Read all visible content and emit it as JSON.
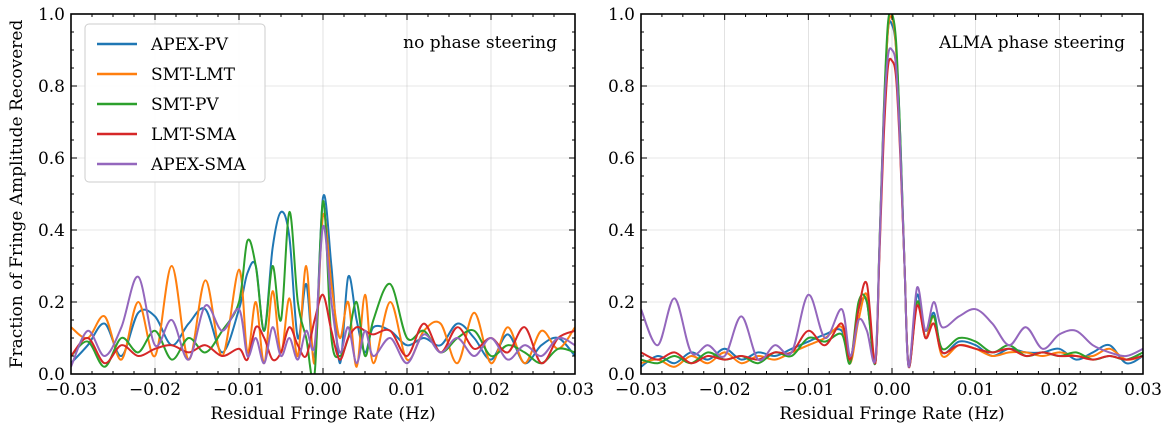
{
  "chart_data": [
    {
      "type": "line",
      "annotation": "no phase steering",
      "xlabel": "Residual Fringe Rate (Hz)",
      "ylabel": "Fraction of Fringe Amplitude Recovered",
      "xlim": [
        -0.03,
        0.03
      ],
      "ylim": [
        0.0,
        1.0
      ],
      "xticks": [
        -0.03,
        -0.02,
        -0.01,
        0.0,
        0.01,
        0.02,
        0.03
      ],
      "xticklabels": [
        "−0.03",
        "−0.02",
        "−0.01",
        "0.00",
        "0.01",
        "0.02",
        "0.03"
      ],
      "yticks": [
        0.0,
        0.2,
        0.4,
        0.6,
        0.8,
        1.0
      ],
      "yticklabels": [
        "0.0",
        "0.2",
        "0.4",
        "0.6",
        "0.8",
        "1.0"
      ],
      "grid": true,
      "legend": "top-left",
      "series": [
        {
          "name": "APEX-PV",
          "color": "#1f77b4",
          "x": [
            -0.03,
            -0.028,
            -0.026,
            -0.024,
            -0.022,
            -0.02,
            -0.018,
            -0.016,
            -0.014,
            -0.012,
            -0.01,
            -0.009,
            -0.008,
            -0.007,
            -0.006,
            -0.005,
            -0.004,
            -0.003,
            -0.002,
            -0.001,
            0.0,
            0.001,
            0.002,
            0.003,
            0.004,
            0.005,
            0.006,
            0.008,
            0.01,
            0.012,
            0.014,
            0.016,
            0.018,
            0.02,
            0.022,
            0.024,
            0.026,
            0.028,
            0.03
          ],
          "values": [
            0.03,
            0.08,
            0.14,
            0.05,
            0.17,
            0.16,
            0.08,
            0.14,
            0.18,
            0.06,
            0.18,
            0.28,
            0.3,
            0.12,
            0.35,
            0.45,
            0.38,
            0.1,
            0.25,
            0.05,
            0.49,
            0.3,
            0.03,
            0.27,
            0.15,
            0.06,
            0.13,
            0.12,
            0.08,
            0.1,
            0.08,
            0.14,
            0.1,
            0.04,
            0.11,
            0.03,
            0.08,
            0.1,
            0.05
          ]
        },
        {
          "name": "SMT-LMT",
          "color": "#ff7f0e",
          "x": [
            -0.03,
            -0.028,
            -0.026,
            -0.024,
            -0.022,
            -0.02,
            -0.018,
            -0.016,
            -0.014,
            -0.012,
            -0.01,
            -0.009,
            -0.008,
            -0.007,
            -0.006,
            -0.005,
            -0.004,
            -0.003,
            -0.002,
            -0.001,
            0.0,
            0.001,
            0.002,
            0.003,
            0.004,
            0.005,
            0.006,
            0.008,
            0.01,
            0.012,
            0.014,
            0.016,
            0.018,
            0.02,
            0.022,
            0.024,
            0.026,
            0.028,
            0.03
          ],
          "values": [
            0.13,
            0.1,
            0.16,
            0.04,
            0.2,
            0.05,
            0.3,
            0.04,
            0.26,
            0.05,
            0.29,
            0.06,
            0.2,
            0.03,
            0.23,
            0.06,
            0.21,
            0.05,
            0.3,
            0.03,
            0.44,
            0.25,
            0.1,
            0.2,
            0.02,
            0.22,
            0.03,
            0.2,
            0.04,
            0.12,
            0.14,
            0.03,
            0.17,
            0.03,
            0.13,
            0.03,
            0.12,
            0.07,
            0.13
          ]
        },
        {
          "name": "SMT-PV",
          "color": "#2ca02c",
          "x": [
            -0.03,
            -0.028,
            -0.026,
            -0.024,
            -0.022,
            -0.02,
            -0.018,
            -0.016,
            -0.014,
            -0.012,
            -0.01,
            -0.009,
            -0.008,
            -0.007,
            -0.006,
            -0.005,
            -0.004,
            -0.003,
            -0.002,
            -0.001,
            0.0,
            0.001,
            0.002,
            0.003,
            0.004,
            0.005,
            0.006,
            0.008,
            0.01,
            0.012,
            0.014,
            0.016,
            0.018,
            0.02,
            0.022,
            0.024,
            0.026,
            0.028,
            0.03
          ],
          "values": [
            0.05,
            0.09,
            0.02,
            0.1,
            0.06,
            0.12,
            0.04,
            0.1,
            0.06,
            0.12,
            0.2,
            0.37,
            0.3,
            0.12,
            0.3,
            0.15,
            0.45,
            0.2,
            0.1,
            0.0,
            0.48,
            0.1,
            0.05,
            0.1,
            0.2,
            0.05,
            0.15,
            0.25,
            0.1,
            0.12,
            0.06,
            0.1,
            0.12,
            0.05,
            0.08,
            0.06,
            0.03,
            0.07,
            0.06
          ]
        },
        {
          "name": "LMT-SMA",
          "color": "#d62728",
          "x": [
            -0.03,
            -0.028,
            -0.026,
            -0.024,
            -0.022,
            -0.02,
            -0.018,
            -0.016,
            -0.014,
            -0.012,
            -0.01,
            -0.009,
            -0.008,
            -0.007,
            -0.006,
            -0.005,
            -0.004,
            -0.003,
            -0.002,
            -0.001,
            0.0,
            0.001,
            0.002,
            0.003,
            0.004,
            0.005,
            0.006,
            0.008,
            0.01,
            0.012,
            0.014,
            0.016,
            0.018,
            0.02,
            0.022,
            0.024,
            0.026,
            0.028,
            0.03
          ],
          "values": [
            0.05,
            0.1,
            0.03,
            0.08,
            0.05,
            0.07,
            0.08,
            0.06,
            0.08,
            0.05,
            0.07,
            0.04,
            0.13,
            0.1,
            0.04,
            0.06,
            0.13,
            0.08,
            0.05,
            0.15,
            0.22,
            0.12,
            0.04,
            0.1,
            0.13,
            0.12,
            0.11,
            0.12,
            0.05,
            0.14,
            0.06,
            0.13,
            0.07,
            0.1,
            0.06,
            0.13,
            0.03,
            0.1,
            0.12
          ]
        },
        {
          "name": "APEX-SMA",
          "color": "#9467bd",
          "x": [
            -0.03,
            -0.028,
            -0.026,
            -0.024,
            -0.022,
            -0.02,
            -0.018,
            -0.016,
            -0.014,
            -0.012,
            -0.01,
            -0.009,
            -0.008,
            -0.007,
            -0.006,
            -0.005,
            -0.004,
            -0.003,
            -0.002,
            -0.001,
            0.0,
            0.001,
            0.002,
            0.003,
            0.004,
            0.005,
            0.006,
            0.008,
            0.01,
            0.012,
            0.014,
            0.016,
            0.018,
            0.02,
            0.022,
            0.024,
            0.026,
            0.028,
            0.03
          ],
          "values": [
            0.02,
            0.12,
            0.05,
            0.13,
            0.27,
            0.08,
            0.15,
            0.04,
            0.19,
            0.12,
            0.18,
            0.05,
            0.1,
            0.03,
            0.13,
            0.05,
            0.1,
            0.04,
            0.12,
            0.08,
            0.41,
            0.2,
            0.06,
            0.13,
            0.03,
            0.12,
            0.05,
            0.1,
            0.03,
            0.11,
            0.06,
            0.1,
            0.05,
            0.1,
            0.04,
            0.08,
            0.05,
            0.1,
            0.08
          ]
        }
      ]
    },
    {
      "type": "line",
      "annotation": "ALMA phase steering",
      "xlabel": "Residual Fringe Rate (Hz)",
      "ylabel": "",
      "xlim": [
        -0.03,
        0.03
      ],
      "ylim": [
        0.0,
        1.0
      ],
      "xticks": [
        -0.03,
        -0.02,
        -0.01,
        0.0,
        0.01,
        0.02,
        0.03
      ],
      "xticklabels": [
        "−0.03",
        "−0.02",
        "−0.01",
        "0.00",
        "0.01",
        "0.02",
        "0.03"
      ],
      "yticks": [
        0.0,
        0.2,
        0.4,
        0.6,
        0.8,
        1.0
      ],
      "yticklabels": [
        "0.0",
        "0.2",
        "0.4",
        "0.6",
        "0.8",
        "1.0"
      ],
      "grid": true,
      "series": [
        {
          "name": "APEX-PV",
          "color": "#1f77b4",
          "x": [
            -0.03,
            -0.028,
            -0.026,
            -0.024,
            -0.022,
            -0.02,
            -0.018,
            -0.016,
            -0.014,
            -0.012,
            -0.01,
            -0.008,
            -0.006,
            -0.005,
            -0.004,
            -0.003,
            -0.002,
            -0.0015,
            -0.001,
            -0.0005,
            0.0,
            0.0005,
            0.001,
            0.0015,
            0.002,
            0.003,
            0.004,
            0.005,
            0.006,
            0.008,
            0.01,
            0.012,
            0.014,
            0.016,
            0.018,
            0.02,
            0.022,
            0.024,
            0.026,
            0.028,
            0.03
          ],
          "values": [
            0.02,
            0.05,
            0.03,
            0.06,
            0.04,
            0.07,
            0.04,
            0.06,
            0.05,
            0.07,
            0.09,
            0.11,
            0.12,
            0.03,
            0.18,
            0.2,
            0.03,
            0.35,
            0.7,
            0.95,
            0.97,
            0.9,
            0.65,
            0.3,
            0.02,
            0.22,
            0.1,
            0.17,
            0.06,
            0.09,
            0.08,
            0.05,
            0.07,
            0.06,
            0.06,
            0.07,
            0.04,
            0.06,
            0.08,
            0.03,
            0.05
          ]
        },
        {
          "name": "SMT-LMT",
          "color": "#ff7f0e",
          "x": [
            -0.03,
            -0.028,
            -0.026,
            -0.024,
            -0.022,
            -0.02,
            -0.018,
            -0.016,
            -0.014,
            -0.012,
            -0.01,
            -0.008,
            -0.006,
            -0.005,
            -0.004,
            -0.003,
            -0.002,
            -0.0015,
            -0.001,
            -0.0005,
            0.0,
            0.0005,
            0.001,
            0.0015,
            0.002,
            0.003,
            0.004,
            0.005,
            0.006,
            0.008,
            0.01,
            0.012,
            0.014,
            0.016,
            0.018,
            0.02,
            0.022,
            0.024,
            0.026,
            0.028,
            0.03
          ],
          "values": [
            0.03,
            0.04,
            0.02,
            0.05,
            0.03,
            0.06,
            0.03,
            0.05,
            0.04,
            0.06,
            0.08,
            0.1,
            0.13,
            0.03,
            0.15,
            0.22,
            0.03,
            0.35,
            0.7,
            0.95,
            0.99,
            0.9,
            0.62,
            0.3,
            0.02,
            0.2,
            0.1,
            0.16,
            0.05,
            0.08,
            0.07,
            0.05,
            0.06,
            0.06,
            0.05,
            0.06,
            0.05,
            0.05,
            0.07,
            0.04,
            0.05
          ]
        },
        {
          "name": "SMT-PV",
          "color": "#2ca02c",
          "x": [
            -0.03,
            -0.028,
            -0.026,
            -0.024,
            -0.022,
            -0.02,
            -0.018,
            -0.016,
            -0.014,
            -0.012,
            -0.01,
            -0.008,
            -0.006,
            -0.005,
            -0.004,
            -0.003,
            -0.002,
            -0.0015,
            -0.001,
            -0.0005,
            0.0,
            0.0005,
            0.001,
            0.0015,
            0.002,
            0.003,
            0.004,
            0.005,
            0.006,
            0.008,
            0.01,
            0.012,
            0.014,
            0.016,
            0.018,
            0.02,
            0.022,
            0.024,
            0.026,
            0.028,
            0.03
          ],
          "values": [
            0.04,
            0.03,
            0.05,
            0.03,
            0.06,
            0.04,
            0.05,
            0.03,
            0.06,
            0.05,
            0.1,
            0.09,
            0.11,
            0.03,
            0.2,
            0.2,
            0.03,
            0.36,
            0.72,
            0.97,
            1.0,
            0.92,
            0.65,
            0.3,
            0.02,
            0.2,
            0.12,
            0.16,
            0.07,
            0.1,
            0.09,
            0.06,
            0.08,
            0.05,
            0.06,
            0.05,
            0.06,
            0.04,
            0.05,
            0.04,
            0.06
          ]
        },
        {
          "name": "LMT-SMA",
          "color": "#d62728",
          "x": [
            -0.03,
            -0.028,
            -0.026,
            -0.024,
            -0.022,
            -0.02,
            -0.018,
            -0.016,
            -0.014,
            -0.012,
            -0.01,
            -0.008,
            -0.006,
            -0.005,
            -0.004,
            -0.003,
            -0.002,
            -0.0015,
            -0.001,
            -0.0005,
            0.0,
            0.0005,
            0.001,
            0.0015,
            0.002,
            0.003,
            0.004,
            0.005,
            0.006,
            0.008,
            0.01,
            0.012,
            0.014,
            0.016,
            0.018,
            0.02,
            0.022,
            0.024,
            0.026,
            0.028,
            0.03
          ],
          "values": [
            0.06,
            0.04,
            0.06,
            0.03,
            0.05,
            0.04,
            0.05,
            0.04,
            0.06,
            0.06,
            0.12,
            0.08,
            0.14,
            0.04,
            0.18,
            0.25,
            0.03,
            0.33,
            0.65,
            0.85,
            0.87,
            0.82,
            0.6,
            0.3,
            0.02,
            0.19,
            0.1,
            0.14,
            0.06,
            0.08,
            0.07,
            0.06,
            0.07,
            0.05,
            0.06,
            0.05,
            0.05,
            0.04,
            0.05,
            0.04,
            0.05
          ]
        },
        {
          "name": "APEX-SMA",
          "color": "#9467bd",
          "x": [
            -0.03,
            -0.028,
            -0.026,
            -0.024,
            -0.022,
            -0.02,
            -0.018,
            -0.016,
            -0.014,
            -0.012,
            -0.01,
            -0.008,
            -0.006,
            -0.005,
            -0.004,
            -0.003,
            -0.002,
            -0.0015,
            -0.001,
            -0.0005,
            0.0,
            0.0005,
            0.001,
            0.0015,
            0.002,
            0.003,
            0.004,
            0.005,
            0.006,
            0.008,
            0.01,
            0.012,
            0.014,
            0.016,
            0.018,
            0.02,
            0.022,
            0.024,
            0.026,
            0.028,
            0.03
          ],
          "values": [
            0.18,
            0.08,
            0.21,
            0.06,
            0.08,
            0.05,
            0.16,
            0.04,
            0.08,
            0.06,
            0.22,
            0.1,
            0.18,
            0.05,
            0.15,
            0.12,
            0.04,
            0.35,
            0.7,
            0.88,
            0.9,
            0.85,
            0.62,
            0.3,
            0.02,
            0.24,
            0.12,
            0.2,
            0.13,
            0.16,
            0.18,
            0.14,
            0.08,
            0.13,
            0.07,
            0.11,
            0.12,
            0.08,
            0.06,
            0.05,
            0.07
          ]
        }
      ]
    }
  ]
}
